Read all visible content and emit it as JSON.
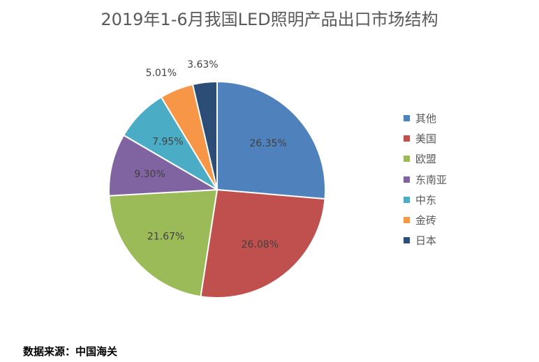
{
  "chart_data": {
    "type": "pie",
    "title": "2019年1-6月我国LED照明产品出口市场结构",
    "categories": [
      "其他",
      "美国",
      "欧盟",
      "东南亚",
      "中东",
      "金砖",
      "日本"
    ],
    "values": [
      26.35,
      26.08,
      21.67,
      9.3,
      7.95,
      5.01,
      3.63
    ],
    "data_labels": [
      "26.35%",
      "26.08%",
      "21.67%",
      "9.30%",
      "7.95%",
      "5.01%",
      "3.63%"
    ],
    "colors": [
      "#4F81BD",
      "#C0504D",
      "#9BBB59",
      "#8064A2",
      "#4BACC6",
      "#F79646",
      "#2C4D75"
    ],
    "legend": "right"
  },
  "source": "数据来源：中国海关"
}
